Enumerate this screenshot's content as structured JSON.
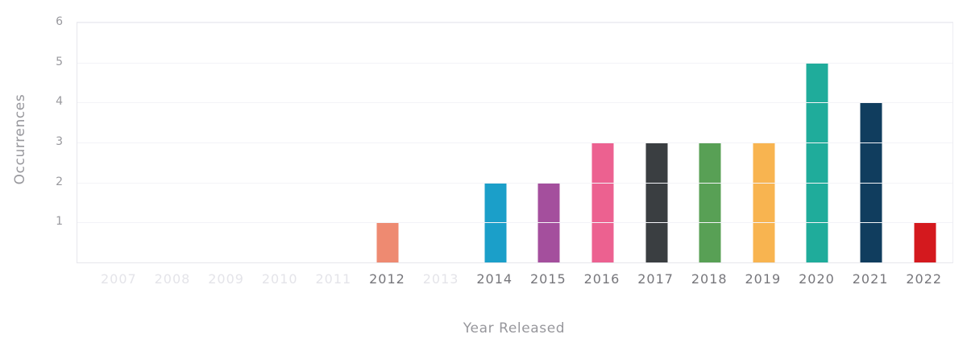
{
  "chart_data": {
    "type": "bar",
    "title": "",
    "xlabel": "Year Released",
    "ylabel": "Occurrences",
    "categories": [
      "2007",
      "2008",
      "2009",
      "2010",
      "2011",
      "2012",
      "2013",
      "2014",
      "2015",
      "2016",
      "2017",
      "2018",
      "2019",
      "2020",
      "2021",
      "2022"
    ],
    "values": [
      0,
      0,
      0,
      0,
      0,
      1,
      0,
      2,
      2,
      3,
      3,
      3,
      3,
      5,
      4,
      1
    ],
    "bar_colors": [
      null,
      null,
      null,
      null,
      null,
      "#EE8A71",
      null,
      "#1B9FC9",
      "#A44F9D",
      "#EC6190",
      "#3A3E41",
      "#58A055",
      "#F8B450",
      "#1FAC9B",
      "#103D5E",
      "#D4191E"
    ],
    "yticks": [
      1,
      2,
      3,
      4,
      5,
      6
    ],
    "ylim": [
      0,
      6
    ],
    "grid": true,
    "legend": "none",
    "colors": {
      "tick_active": "#76767b",
      "tick_inactive": "#e4e4e9",
      "y_tick": "#98989d",
      "axis_label": "#97979c",
      "gridline": "#f3f3f7",
      "axis_line": "#e7e7ec"
    }
  }
}
